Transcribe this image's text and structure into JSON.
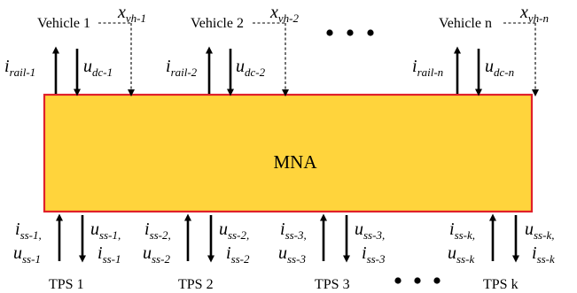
{
  "mna": {
    "label": "MNA",
    "fill_color": "#FFD43C",
    "border_color": "#E0202A"
  },
  "vehicles": [
    {
      "name": "Vehicle 1",
      "current_main": "i",
      "current_sub": "rail-1",
      "voltage_main": "u",
      "voltage_sub": "dc-1",
      "position_main": "x",
      "position_sub": "vh-1"
    },
    {
      "name": "Vehicle 2",
      "current_main": "i",
      "current_sub": "rail-2",
      "voltage_main": "u",
      "voltage_sub": "dc-2",
      "position_main": "x",
      "position_sub": "vh-2"
    },
    {
      "name": "Vehicle n",
      "current_main": "i",
      "current_sub": "rail-n",
      "voltage_main": "u",
      "voltage_sub": "dc-n",
      "position_main": "x",
      "position_sub": "vh-n"
    }
  ],
  "substations": [
    {
      "name": "TPS 1",
      "in_line1_main": "i",
      "in_line1_sub": "ss-1,",
      "in_line2_main": "u",
      "in_line2_sub": "ss-1",
      "out_line1_main": "u",
      "out_line1_sub": "ss-1,",
      "out_line2_main": "i",
      "out_line2_sub": "ss-1"
    },
    {
      "name": "TPS 2",
      "in_line1_main": "i",
      "in_line1_sub": "ss-2,",
      "in_line2_main": "u",
      "in_line2_sub": "ss-2",
      "out_line1_main": "u",
      "out_line1_sub": "ss-2,",
      "out_line2_main": "i",
      "out_line2_sub": "ss-2"
    },
    {
      "name": "TPS 3",
      "in_line1_main": "i",
      "in_line1_sub": "ss-3,",
      "in_line2_main": "u",
      "in_line2_sub": "ss-3",
      "out_line1_main": "u",
      "out_line1_sub": "ss-3,",
      "out_line2_main": "i",
      "out_line2_sub": "ss-3"
    },
    {
      "name": "TPS k",
      "in_line1_main": "i",
      "in_line1_sub": "ss-k,",
      "in_line2_main": "u",
      "in_line2_sub": "ss-k",
      "out_line1_main": "u",
      "out_line1_sub": "ss-k,",
      "out_line2_main": "i",
      "out_line2_sub": "ss-k"
    }
  ]
}
